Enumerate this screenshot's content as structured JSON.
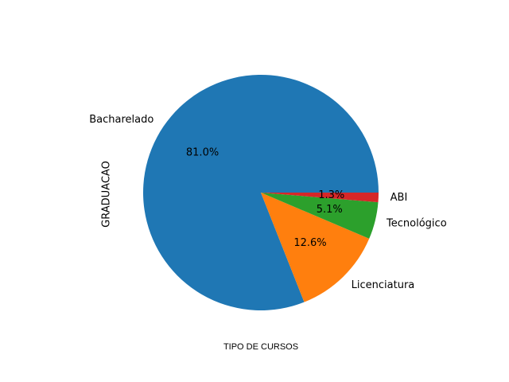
{
  "chart_data": {
    "type": "pie",
    "categories": [
      "Bacharelado",
      "Licenciatura",
      "Tecnológico",
      "ABI"
    ],
    "values": [
      81.0,
      12.6,
      5.1,
      1.3
    ],
    "percent_labels": [
      "81.0%",
      "12.6%",
      "5.1%",
      "1.3%"
    ],
    "colors": [
      "#1f77b4",
      "#ff7f0e",
      "#2ca02c",
      "#d62728"
    ],
    "start_angle": 0,
    "direction": "counterclockwise",
    "xlabel": "TIPO DE CURSOS",
    "ylabel": "GRADUACAO",
    "legend": "none"
  }
}
